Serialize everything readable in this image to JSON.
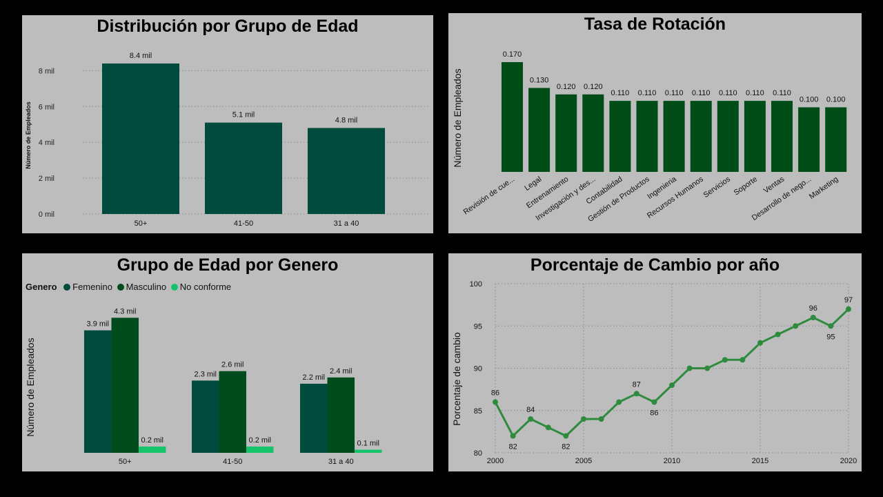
{
  "colors": {
    "femenino": "#004b3e",
    "masculino": "#004c1c",
    "no_conforme": "#17c36a",
    "rotacion_bar": "#004d18",
    "edad_bar": "#004b3e",
    "line": "#2e8b3e"
  },
  "chart_data": [
    {
      "type": "bar",
      "title": "Distribución por Grupo de Edad",
      "categories": [
        "50+",
        "41-50",
        "31 a 40"
      ],
      "values": [
        8.4,
        5.1,
        4.8
      ],
      "data_labels": [
        "8.4 mil",
        "5.1 mil",
        "4.8 mil"
      ],
      "ylabel": "Número de Empleados",
      "yticks": [
        "0 mil",
        "2 mil",
        "4 mil",
        "6 mil",
        "8 mil"
      ],
      "ytick_values": [
        0,
        2,
        4,
        6,
        8
      ],
      "ylim": [
        0,
        8.9
      ],
      "grid": true
    },
    {
      "type": "bar",
      "title": "Tasa de Rotación",
      "categories": [
        "Revisión de cue...",
        "Legal",
        "Entrenamiento",
        "Investigación y des...",
        "Contabilidad",
        "Gestión de Productos",
        "Ingenieria",
        "Recursos Humanos",
        "Servicios",
        "Soporte",
        "Ventas",
        "Desarrollo de nego...",
        "Marketing"
      ],
      "values": [
        0.17,
        0.13,
        0.12,
        0.12,
        0.11,
        0.11,
        0.11,
        0.11,
        0.11,
        0.11,
        0.11,
        0.1,
        0.1
      ],
      "data_labels": [
        "0.170",
        "0.130",
        "0.120",
        "0.120",
        "0.110",
        "0.110",
        "0.110",
        "0.110",
        "0.110",
        "0.110",
        "0.110",
        "0.100",
        "0.100"
      ],
      "ylabel": "Número de Empleados",
      "ylim": [
        0,
        0.17
      ],
      "grid": false
    },
    {
      "type": "bar",
      "title": "Grupo de Edad por Genero",
      "legend_title": "Genero",
      "categories": [
        "50+",
        "41-50",
        "31 a 40"
      ],
      "series": [
        {
          "name": "Femenino",
          "values": [
            3.9,
            2.3,
            2.2
          ],
          "labels": [
            "3.9 mil",
            "2.3 mil",
            "2.2 mil"
          ]
        },
        {
          "name": "Masculino",
          "values": [
            4.3,
            2.6,
            2.4
          ],
          "labels": [
            "4.3 mil",
            "2.6 mil",
            "2.4 mil"
          ]
        },
        {
          "name": "No conforme",
          "values": [
            0.2,
            0.2,
            0.1
          ],
          "labels": [
            "0.2 mil",
            "0.2 mil",
            "0.1 mil"
          ]
        }
      ],
      "ylabel": "Número de Empleados",
      "legend_position": "top-left",
      "grid": false
    },
    {
      "type": "line",
      "title": "Porcentaje de Cambio por año",
      "x": [
        2000,
        2001,
        2002,
        2003,
        2004,
        2005,
        2006,
        2007,
        2008,
        2009,
        2010,
        2011,
        2012,
        2013,
        2014,
        2015,
        2016,
        2017,
        2018,
        2019,
        2020
      ],
      "y": [
        86,
        82,
        84,
        83,
        82,
        84,
        84,
        86,
        87,
        86,
        88,
        90,
        90,
        91,
        91,
        93,
        94,
        95,
        96,
        95,
        97
      ],
      "point_labels": [
        {
          "x": 2000,
          "text": "86",
          "pos": "above"
        },
        {
          "x": 2001,
          "text": "82",
          "pos": "below"
        },
        {
          "x": 2002,
          "text": "84",
          "pos": "above"
        },
        {
          "x": 2004,
          "text": "82",
          "pos": "below"
        },
        {
          "x": 2008,
          "text": "87",
          "pos": "above"
        },
        {
          "x": 2009,
          "text": "86",
          "pos": "below"
        },
        {
          "x": 2018,
          "text": "96",
          "pos": "above"
        },
        {
          "x": 2019,
          "text": "95",
          "pos": "below"
        },
        {
          "x": 2020,
          "text": "97",
          "pos": "above"
        }
      ],
      "xticks": [
        2000,
        2005,
        2010,
        2015,
        2020
      ],
      "yticks": [
        80,
        85,
        90,
        95,
        100
      ],
      "xlim": [
        2000,
        2020
      ],
      "ylim": [
        80,
        100
      ],
      "ylabel": "Porcentaje de cambio",
      "grid": true
    }
  ]
}
